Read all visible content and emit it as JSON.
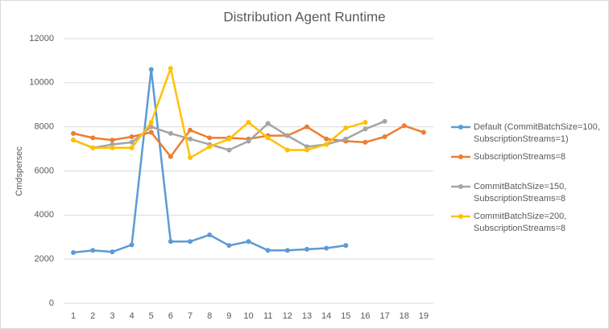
{
  "chart_data": {
    "type": "line",
    "title": "Distribution Agent Runtime",
    "y_label": "Cmdspersec",
    "categories": [
      1,
      2,
      3,
      4,
      5,
      6,
      7,
      8,
      9,
      10,
      11,
      12,
      13,
      14,
      15,
      16,
      17,
      18,
      19
    ],
    "series": [
      {
        "name": "Default (CommitBatchSize=100, SubscriptionStreams=1)",
        "color": "#5b9bd5",
        "values": [
          2300,
          2400,
          2330,
          2650,
          10600,
          2800,
          2800,
          3100,
          2620,
          2800,
          2400,
          2400,
          2450,
          2500,
          2620,
          null,
          null,
          null,
          null
        ]
      },
      {
        "name": "SubscriptionStreams=8",
        "color": "#ed7d31",
        "values": [
          7700,
          7500,
          7400,
          7550,
          7750,
          6650,
          7850,
          7500,
          7500,
          7450,
          7600,
          7600,
          8000,
          7450,
          7350,
          7300,
          7550,
          8050,
          7750
        ]
      },
      {
        "name": "CommitBatchSize=150, SubscriptionStreams=8",
        "color": "#a5a5a5",
        "values": [
          7400,
          7050,
          7200,
          7300,
          8000,
          7700,
          7450,
          7200,
          6950,
          7350,
          8150,
          7600,
          7100,
          7200,
          7450,
          7900,
          8250,
          null,
          null
        ]
      },
      {
        "name": "CommitBatchSize=200, SubscriptionStreams=8",
        "color": "#ffc000",
        "values": [
          7400,
          7050,
          7050,
          7050,
          8200,
          10650,
          6600,
          7100,
          7450,
          8200,
          7500,
          6950,
          6950,
          7200,
          7950,
          8200,
          null,
          null,
          null
        ]
      }
    ],
    "ylim": [
      0,
      12000
    ],
    "yticks": [
      0,
      2000,
      4000,
      6000,
      8000,
      10000,
      12000
    ],
    "grid": true,
    "legend": "right"
  }
}
